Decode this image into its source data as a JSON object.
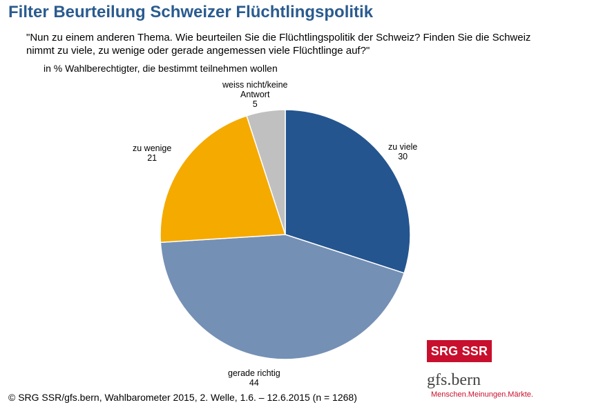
{
  "title": "Filter Beurteilung Schweizer Flüchtlingspolitik",
  "question_line1": "\"Nun zu einem anderen Thema. Wie beurteilen Sie die Flüchtlingspolitik der Schweiz? Finden Sie die Schweiz",
  "question_line2": "nimmt zu viele, zu wenige oder gerade angemessen viele Flüchtlinge auf?\"",
  "subtitle": "in % Wahlberechtigter, die bestimmt teilnehmen wollen",
  "source": "© SRG SSR/gfs.bern, Wahlbarometer 2015, 2. Welle, 1.6. – 12.6.2015 (n = 1268)",
  "logos": {
    "srg": "SRG SSR",
    "gfs_name": "gfs.bern",
    "gfs_tagline": "Menschen.Meinungen.Märkte."
  },
  "chart_data": {
    "type": "pie",
    "start": "12 o'clock, clockwise",
    "slices": [
      {
        "label": "zu viele",
        "value": 30,
        "color": "#24558f"
      },
      {
        "label": "gerade richtig",
        "value": 44,
        "color": "#7590b5"
      },
      {
        "label": "zu wenige",
        "value": 21,
        "color": "#f5aa00"
      },
      {
        "label": "weiss nicht/keine Antwort",
        "label_lines": [
          "weiss nicht/keine",
          "Antwort"
        ],
        "value": 5,
        "color": "#c0c0c0"
      }
    ]
  }
}
